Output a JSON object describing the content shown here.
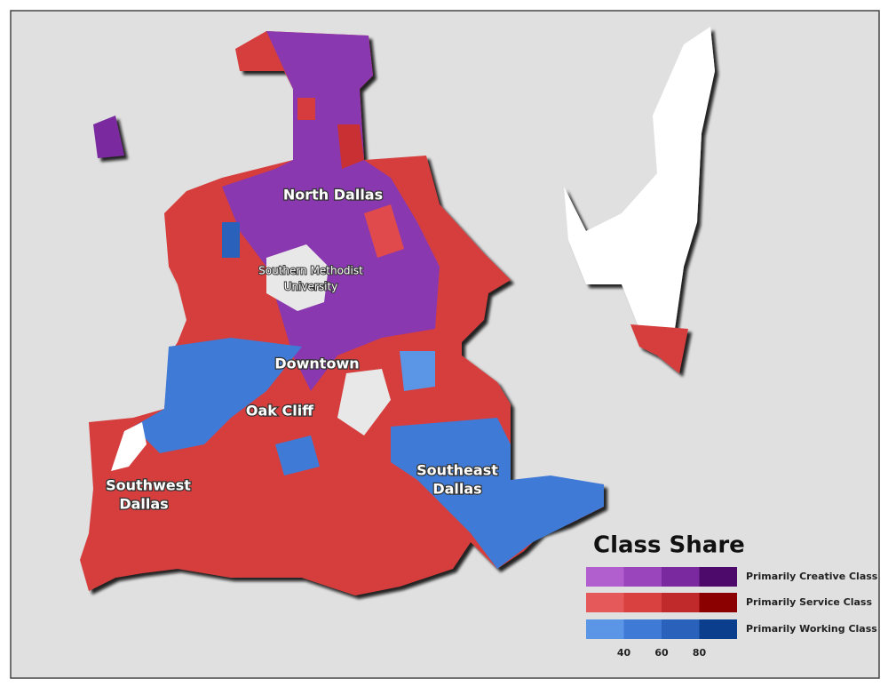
{
  "map": {
    "labels": [
      {
        "lines": [
          "North Dallas"
        ]
      },
      {
        "lines": [
          "Southern Methodist",
          "University"
        ]
      },
      {
        "lines": [
          "Downtown"
        ]
      },
      {
        "lines": [
          "Oak Cliff"
        ]
      },
      {
        "lines": [
          "Southwest",
          "Dallas"
        ]
      },
      {
        "lines": [
          "Southeast",
          "Dallas"
        ]
      }
    ]
  },
  "legend": {
    "title": "Class Share",
    "classes": [
      {
        "name": "Primarily Creative Class",
        "colors": [
          "#b15fcf",
          "#9a45bb",
          "#7a2a9e",
          "#4e0a6b"
        ]
      },
      {
        "name": "Primarily Service Class",
        "colors": [
          "#e5595a",
          "#d94040",
          "#c02a2a",
          "#8b0000"
        ]
      },
      {
        "name": "Primarily Working Class",
        "colors": [
          "#5a95e6",
          "#3f7bd6",
          "#2a62bb",
          "#0b3e8c"
        ]
      }
    ],
    "ticks": [
      40,
      60,
      80
    ]
  }
}
